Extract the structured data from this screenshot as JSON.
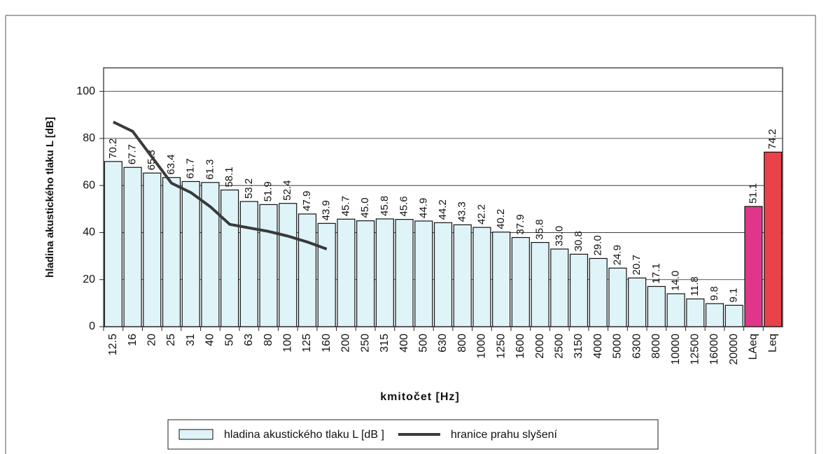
{
  "chart_data": {
    "type": "bar",
    "xlabel": "kmitočet [Hz]",
    "ylabel": "hladina akustického tlaku  L [dB]",
    "categories": [
      "12.5",
      "16",
      "20",
      "25",
      "31",
      "40",
      "50",
      "63",
      "80",
      "100",
      "125",
      "160",
      "200",
      "250",
      "315",
      "400",
      "500",
      "630",
      "800",
      "1000",
      "1250",
      "1600",
      "2000",
      "2500",
      "3150",
      "4000",
      "5000",
      "6300",
      "8000",
      "10000",
      "12500",
      "16000",
      "20000",
      "LAeq",
      "Leq"
    ],
    "series": [
      {
        "name": "hladina akustického tlaku L [dB ]",
        "type": "bar",
        "color": "#dff4f8",
        "colors": [
          "#dff4f8",
          "#dff4f8",
          "#dff4f8",
          "#dff4f8",
          "#dff4f8",
          "#dff4f8",
          "#dff4f8",
          "#dff4f8",
          "#dff4f8",
          "#dff4f8",
          "#dff4f8",
          "#dff4f8",
          "#dff4f8",
          "#dff4f8",
          "#dff4f8",
          "#dff4f8",
          "#dff4f8",
          "#dff4f8",
          "#dff4f8",
          "#dff4f8",
          "#dff4f8",
          "#dff4f8",
          "#dff4f8",
          "#dff4f8",
          "#dff4f8",
          "#dff4f8",
          "#dff4f8",
          "#dff4f8",
          "#dff4f8",
          "#dff4f8",
          "#dff4f8",
          "#dff4f8",
          "#dff4f8",
          "#e0368a",
          "#e8424a"
        ],
        "values": [
          70.2,
          67.7,
          65.3,
          63.4,
          61.7,
          61.3,
          58.1,
          53.2,
          51.9,
          52.4,
          47.9,
          43.9,
          45.7,
          45.0,
          45.8,
          45.6,
          44.9,
          44.2,
          43.3,
          42.2,
          40.2,
          37.9,
          35.8,
          33.0,
          30.8,
          29.0,
          24.9,
          20.7,
          17.1,
          14.0,
          11.8,
          9.8,
          9.1,
          51.1,
          74.2
        ],
        "value_labels": [
          "70.2",
          "67.7",
          "65.3",
          "63.4",
          "61.7",
          "61.3",
          "58.1",
          "53.2",
          "51.9",
          "52.4",
          "47.9",
          "43.9",
          "45.7",
          "45.0",
          "45.8",
          "45.6",
          "44.9",
          "44.2",
          "43.3",
          "42.2",
          "40.2",
          "37.9",
          "35.8",
          "33.0",
          "30.8",
          "29.0",
          "24.9",
          "20.7",
          "17.1",
          "14.0",
          "11.8",
          "9.8",
          "9.1",
          "51.1",
          "74.2"
        ]
      },
      {
        "name": "hranice prahu slyšení",
        "type": "line",
        "color": "#3a3a3a",
        "values": [
          87,
          83,
          72,
          61,
          57,
          51,
          43.5,
          42,
          40.5,
          38.5,
          36,
          33,
          null,
          null,
          null,
          null,
          null,
          null,
          null,
          null,
          null,
          null,
          null,
          null,
          null,
          null,
          null,
          null,
          null,
          null,
          null,
          null,
          null,
          null,
          null
        ]
      }
    ],
    "ylim": [
      0,
      110
    ],
    "yticks": [
      0,
      20,
      40,
      60,
      80,
      100
    ],
    "grid": true,
    "legend": "bottom"
  }
}
